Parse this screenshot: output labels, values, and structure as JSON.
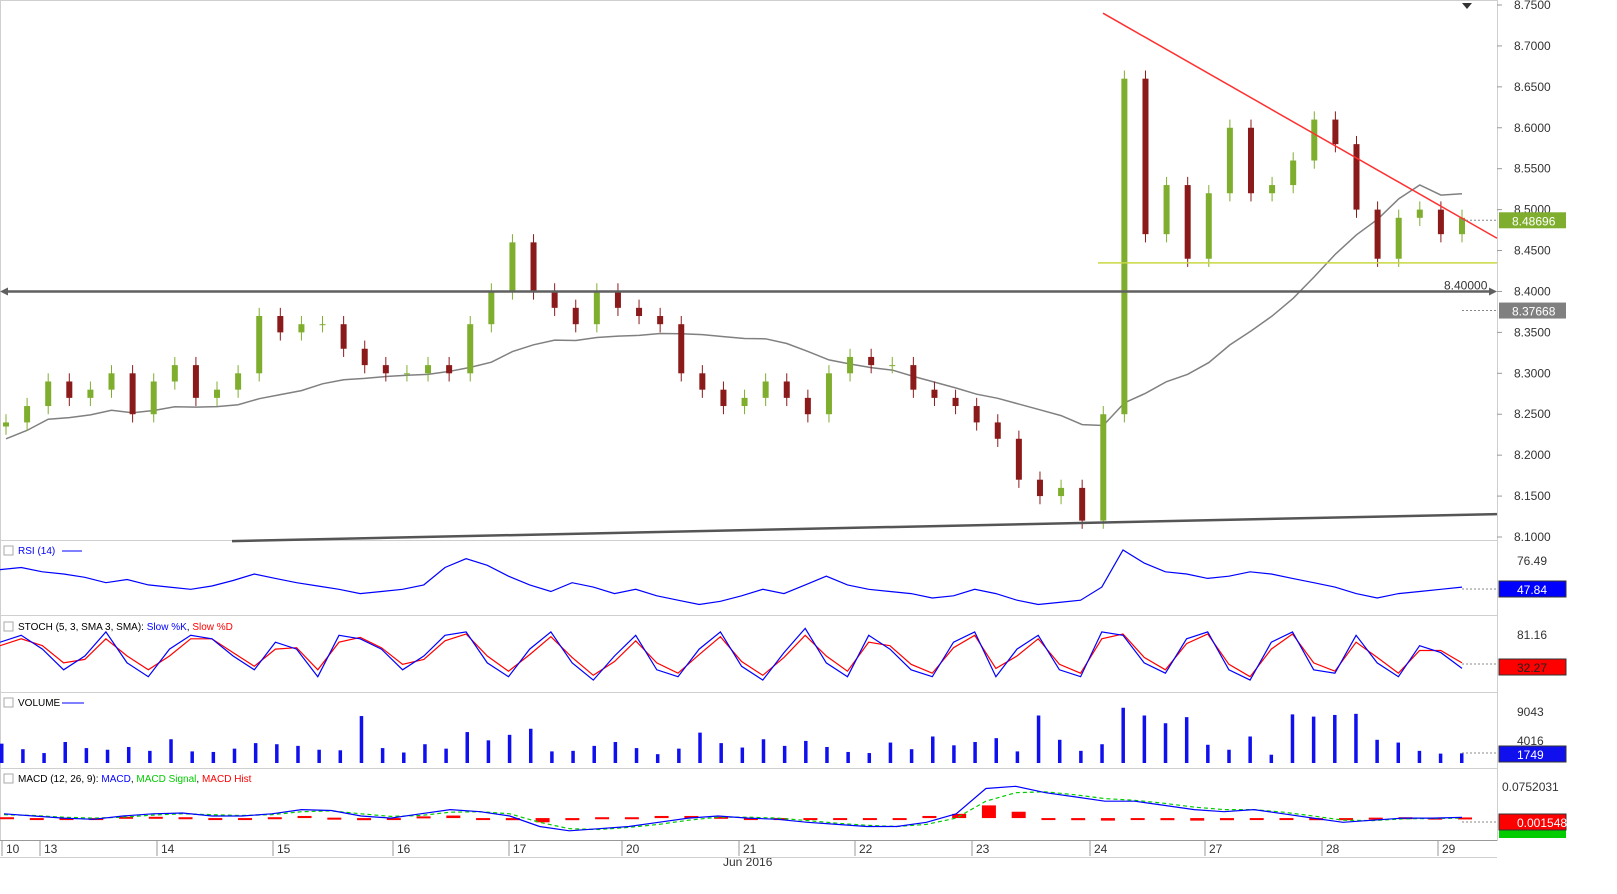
{
  "chart_data": [
    {
      "panel": "price",
      "type": "candlestick",
      "ylim": [
        8.1,
        8.75
      ],
      "yticks": [
        "8.7500",
        "8.7000",
        "8.6500",
        "8.6000",
        "8.5500",
        "8.5000",
        "8.4500",
        "8.4000",
        "8.3500",
        "8.3000",
        "8.2500",
        "8.2000",
        "8.1500",
        "8.1000"
      ],
      "last_value": "8.48696",
      "ma_value": "8.37668",
      "hline_label": "8.40000",
      "hline_value": 8.4,
      "support_value": 8.435,
      "resistance_line": [
        [
          8.74,
          8.465
        ]
      ],
      "close_path": [
        8.24,
        8.26,
        8.29,
        8.27,
        8.28,
        8.3,
        8.25,
        8.29,
        8.31,
        8.27,
        8.28,
        8.3,
        8.37,
        8.35,
        8.36,
        8.36,
        8.33,
        8.31,
        8.3,
        8.3,
        8.31,
        8.3,
        8.36,
        8.4,
        8.46,
        8.4,
        8.38,
        8.36,
        8.4,
        8.38,
        8.37,
        8.36,
        8.3,
        8.28,
        8.26,
        8.27,
        8.29,
        8.27,
        8.25,
        8.3,
        8.32,
        8.31,
        8.31,
        8.28,
        8.27,
        8.26,
        8.24,
        8.22,
        8.17,
        8.15,
        8.16,
        8.12,
        8.25,
        8.66,
        8.47,
        8.53,
        8.44,
        8.52,
        8.6,
        8.52,
        8.53,
        8.56,
        8.61,
        8.58,
        8.5,
        8.44,
        8.49,
        8.5,
        8.47,
        8.49
      ],
      "colors": {
        "up": "#7fae2e",
        "down": "#8b1a1a",
        "ma": "#808080",
        "resistance": "#ff3030",
        "support": "#c8d840",
        "hline": "#606060"
      }
    },
    {
      "panel": "rsi",
      "type": "line",
      "title": "RSI (14)",
      "yticks": [
        "76.49"
      ],
      "last_value": "47.84",
      "series": [
        {
          "name": "RSI (14)",
          "values": [
            62,
            64,
            60,
            58,
            55,
            50,
            53,
            48,
            46,
            44,
            47,
            52,
            58,
            54,
            50,
            47,
            44,
            40,
            42,
            44,
            48,
            64,
            72,
            66,
            56,
            48,
            42,
            50,
            46,
            40,
            44,
            38,
            34,
            30,
            33,
            38,
            44,
            40,
            48,
            56,
            48,
            44,
            42,
            40,
            36,
            38,
            44,
            40,
            34,
            30,
            32,
            34,
            46,
            80,
            68,
            60,
            58,
            54,
            56,
            60,
            58,
            54,
            50,
            46,
            40,
            36,
            40,
            42,
            44,
            46
          ]
        }
      ]
    },
    {
      "panel": "stoch",
      "type": "line",
      "title": "STOCH (5, 3, SMA 3, SMA)",
      "yticks": [
        "81.16"
      ],
      "last_value": "32.27",
      "series": [
        {
          "name": "Slow %K",
          "values": [
            70,
            80,
            60,
            30,
            50,
            85,
            40,
            20,
            60,
            80,
            75,
            50,
            30,
            70,
            60,
            20,
            80,
            75,
            60,
            30,
            50,
            80,
            85,
            40,
            20,
            60,
            85,
            40,
            15,
            50,
            80,
            30,
            20,
            60,
            85,
            35,
            15,
            55,
            90,
            40,
            20,
            80,
            60,
            30,
            20,
            70,
            85,
            20,
            60,
            80,
            30,
            20,
            85,
            80,
            40,
            25,
            75,
            85,
            30,
            15,
            70,
            85,
            30,
            25,
            80,
            40,
            20,
            65,
            55,
            32
          ]
        },
        {
          "name": "Slow %D",
          "values": [
            65,
            75,
            65,
            40,
            45,
            75,
            50,
            30,
            50,
            75,
            75,
            55,
            35,
            60,
            62,
            30,
            70,
            77,
            62,
            38,
            45,
            72,
            82,
            50,
            28,
            52,
            78,
            48,
            22,
            42,
            72,
            40,
            25,
            52,
            78,
            42,
            22,
            48,
            80,
            50,
            28,
            70,
            65,
            38,
            25,
            62,
            80,
            32,
            50,
            75,
            38,
            25,
            75,
            82,
            48,
            30,
            68,
            82,
            38,
            20,
            60,
            82,
            40,
            28,
            70,
            48,
            25,
            58,
            58,
            40
          ]
        }
      ],
      "colors": {
        "k": "#0000ff",
        "d": "#ff0000"
      }
    },
    {
      "panel": "volume",
      "type": "bar",
      "title": "VOLUME",
      "yticks": [
        "9043",
        "4016"
      ],
      "last_value": "1749",
      "values": [
        3500,
        2500,
        1800,
        3800,
        2700,
        2400,
        2900,
        2200,
        4300,
        2100,
        2000,
        2600,
        3600,
        3400,
        3100,
        2400,
        2300,
        8500,
        2700,
        1900,
        3400,
        2600,
        5600,
        4100,
        5100,
        6200,
        2100,
        2200,
        3100,
        3800,
        2700,
        1600,
        2600,
        5500,
        3600,
        2800,
        4300,
        3100,
        4000,
        2900,
        2000,
        1800,
        3700,
        2500,
        4800,
        3200,
        3800,
        4500,
        2100,
        8600,
        4200,
        2200,
        3400,
        10000,
        8600,
        7200,
        8300,
        3300,
        2400,
        4800,
        1500,
        8800,
        8400,
        8700,
        8900,
        4200,
        3700,
        2200,
        1700,
        1749
      ],
      "color": "#1010ee"
    },
    {
      "panel": "macd",
      "type": "line",
      "title": "MACD (12, 26, 9)",
      "yticks": [
        "0.0752031"
      ],
      "last_value": "0.0015485",
      "series": [
        {
          "name": "MACD",
          "values": [
            0.01,
            0.005,
            0,
            -0.003,
            0.005,
            0.01,
            0.012,
            0.005,
            0.005,
            0.01,
            0.02,
            0.018,
            0.005,
            0.0,
            0.01,
            0.02,
            0.015,
            0.005,
            -0.02,
            -0.03,
            -0.025,
            -0.02,
            -0.01,
            0.0,
            0.005,
            0.0,
            -0.003,
            -0.01,
            -0.015,
            -0.02,
            -0.02,
            -0.01,
            0.01,
            0.07,
            0.075,
            0.06,
            0.05,
            0.04,
            0.04,
            0.03,
            0.02,
            0.015,
            0.02,
            0.01,
            0.0,
            -0.01,
            -0.005,
            0.0,
            0.0,
            0.0015
          ]
        },
        {
          "name": "MACD Signal",
          "values": [
            0.008,
            0.006,
            0.002,
            0.0,
            0.002,
            0.007,
            0.01,
            0.008,
            0.006,
            0.008,
            0.015,
            0.017,
            0.01,
            0.004,
            0.006,
            0.014,
            0.015,
            0.01,
            -0.01,
            -0.025,
            -0.027,
            -0.022,
            -0.015,
            -0.005,
            0.002,
            0.002,
            0.0,
            -0.006,
            -0.012,
            -0.017,
            -0.02,
            -0.015,
            0.0,
            0.04,
            0.06,
            0.062,
            0.055,
            0.046,
            0.042,
            0.035,
            0.026,
            0.02,
            0.02,
            0.014,
            0.005,
            -0.005,
            -0.006,
            -0.002,
            -0.001,
            0.0
          ]
        },
        {
          "name": "MACD Hist",
          "values": [
            0.002,
            -0.001,
            -0.002,
            -0.003,
            0.003,
            0.003,
            0.002,
            -0.003,
            -0.001,
            0.002,
            0.005,
            0.001,
            -0.005,
            -0.004,
            0.004,
            0.006,
            0.0,
            -0.005,
            -0.01,
            -0.005,
            0.002,
            0.002,
            0.005,
            0.005,
            0.003,
            -0.002,
            -0.003,
            -0.004,
            -0.003,
            -0.003,
            0.0,
            0.005,
            0.01,
            0.03,
            0.015,
            -0.002,
            -0.005,
            -0.006,
            -0.002,
            -0.005,
            -0.006,
            -0.005,
            0.0,
            -0.004,
            -0.005,
            -0.005,
            0.001,
            0.002,
            0.001,
            0.0015
          ]
        }
      ],
      "colors": {
        "macd": "#0000ff",
        "signal": "#00cc00",
        "hist": "#ff0000"
      }
    }
  ],
  "x_axis": {
    "ticks": [
      "10",
      "13",
      "14",
      "15",
      "16",
      "17",
      "20",
      "21",
      "22",
      "23",
      "24",
      "27",
      "28",
      "29"
    ],
    "month_label": "Jun 2016"
  },
  "legend_text": {
    "rsi": "RSI (14)",
    "stoch": "STOCH (5, 3, SMA 3, SMA): ",
    "stoch_k": "Slow %K",
    "stoch_d": "Slow %D",
    "volume": "VOLUME",
    "macd": "MACD (12, 26, 9): ",
    "macd_line": "MACD",
    "macd_signal": "MACD Signal",
    "macd_hist": "MACD Hist"
  }
}
